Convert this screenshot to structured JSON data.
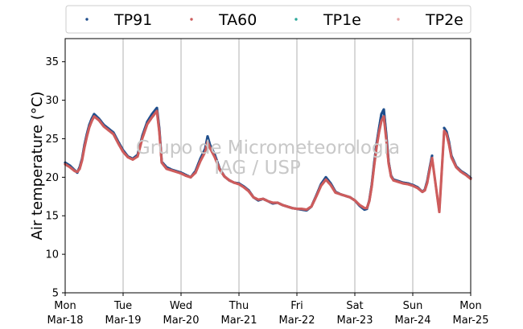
{
  "chart_data": {
    "type": "scatter",
    "ylabel": "Air temperature (°C)",
    "xlabel": "",
    "ylim": [
      5,
      38
    ],
    "xlim": [
      "2024-03-18T00:00",
      "2024-03-25T00:00"
    ],
    "grid": "vertical, daily",
    "legend": "top, horizontal",
    "watermark": [
      "Grupo de Micrometeorologia",
      "IAG / USP"
    ],
    "yticks": [
      5,
      10,
      15,
      20,
      25,
      30,
      35
    ],
    "xticks": [
      {
        "day": "Mon",
        "date": "Mar-18"
      },
      {
        "day": "Tue",
        "date": "Mar-19"
      },
      {
        "day": "Wed",
        "date": "Mar-20"
      },
      {
        "day": "Thu",
        "date": "Mar-21"
      },
      {
        "day": "Fri",
        "date": "Mar-22"
      },
      {
        "day": "Sat",
        "date": "Mar-23"
      },
      {
        "day": "Sun",
        "date": "Mar-24"
      },
      {
        "day": "Mon",
        "date": "Mar-25"
      }
    ],
    "series": [
      {
        "name": "TP91",
        "color": "#1f4e8c",
        "points": [
          [
            "2024-03-18T00:00",
            21.9
          ],
          [
            "2024-03-18T02:00",
            21.5
          ],
          [
            "2024-03-18T04:00",
            20.9
          ],
          [
            "2024-03-18T05:00",
            20.6
          ],
          [
            "2024-03-18T06:00",
            21.3
          ],
          [
            "2024-03-18T07:00",
            22.4
          ],
          [
            "2024-03-18T08:00",
            24.2
          ],
          [
            "2024-03-18T09:00",
            25.6
          ],
          [
            "2024-03-18T10:00",
            26.8
          ],
          [
            "2024-03-18T11:00",
            27.6
          ],
          [
            "2024-03-18T12:00",
            28.2
          ],
          [
            "2024-03-18T14:00",
            27.6
          ],
          [
            "2024-03-18T16:00",
            26.8
          ],
          [
            "2024-03-18T18:00",
            26.3
          ],
          [
            "2024-03-18T20:00",
            25.8
          ],
          [
            "2024-03-18T22:00",
            24.6
          ],
          [
            "2024-03-19T00:00",
            23.5
          ],
          [
            "2024-03-19T02:00",
            22.7
          ],
          [
            "2024-03-19T04:00",
            22.4
          ],
          [
            "2024-03-19T06:00",
            22.9
          ],
          [
            "2024-03-19T08:00",
            25.4
          ],
          [
            "2024-03-19T10:00",
            27.2
          ],
          [
            "2024-03-19T12:00",
            28.2
          ],
          [
            "2024-03-19T14:00",
            29.0
          ],
          [
            "2024-03-19T15:00",
            26.3
          ],
          [
            "2024-03-19T16:00",
            22.0
          ],
          [
            "2024-03-19T18:00",
            21.3
          ],
          [
            "2024-03-19T20:00",
            21.0
          ],
          [
            "2024-03-19T22:00",
            20.8
          ],
          [
            "2024-03-20T00:00",
            20.6
          ],
          [
            "2024-03-20T02:00",
            20.3
          ],
          [
            "2024-03-20T04:00",
            20.0
          ],
          [
            "2024-03-20T06:00",
            20.8
          ],
          [
            "2024-03-20T08:00",
            22.4
          ],
          [
            "2024-03-20T10:00",
            23.7
          ],
          [
            "2024-03-20T11:00",
            25.3
          ],
          [
            "2024-03-20T12:00",
            24.2
          ],
          [
            "2024-03-20T14:00",
            22.9
          ],
          [
            "2024-03-20T16:00",
            21.1
          ],
          [
            "2024-03-20T18:00",
            20.1
          ],
          [
            "2024-03-20T20:00",
            19.6
          ],
          [
            "2024-03-20T22:00",
            19.3
          ],
          [
            "2024-03-21T00:00",
            19.2
          ],
          [
            "2024-03-21T02:00",
            18.8
          ],
          [
            "2024-03-21T04:00",
            18.3
          ],
          [
            "2024-03-21T06:00",
            17.4
          ],
          [
            "2024-03-21T08:00",
            17.0
          ],
          [
            "2024-03-21T10:00",
            17.2
          ],
          [
            "2024-03-21T12:00",
            16.9
          ],
          [
            "2024-03-21T14:00",
            16.6
          ],
          [
            "2024-03-21T16:00",
            16.7
          ],
          [
            "2024-03-21T18:00",
            16.4
          ],
          [
            "2024-03-21T20:00",
            16.2
          ],
          [
            "2024-03-21T22:00",
            16.0
          ],
          [
            "2024-03-22T00:00",
            15.9
          ],
          [
            "2024-03-22T02:00",
            15.8
          ],
          [
            "2024-03-22T04:00",
            15.7
          ],
          [
            "2024-03-22T06:00",
            16.2
          ],
          [
            "2024-03-22T08:00",
            17.6
          ],
          [
            "2024-03-22T10:00",
            19.1
          ],
          [
            "2024-03-22T12:00",
            20.0
          ],
          [
            "2024-03-22T14:00",
            19.2
          ],
          [
            "2024-03-22T16:00",
            18.1
          ],
          [
            "2024-03-22T18:00",
            17.8
          ],
          [
            "2024-03-22T20:00",
            17.6
          ],
          [
            "2024-03-22T22:00",
            17.4
          ],
          [
            "2024-03-23T00:00",
            17.0
          ],
          [
            "2024-03-23T02:00",
            16.3
          ],
          [
            "2024-03-23T04:00",
            15.8
          ],
          [
            "2024-03-23T05:00",
            15.9
          ],
          [
            "2024-03-23T06:00",
            17.0
          ],
          [
            "2024-03-23T07:00",
            19.0
          ],
          [
            "2024-03-23T08:00",
            21.8
          ],
          [
            "2024-03-23T09:00",
            24.3
          ],
          [
            "2024-03-23T10:00",
            26.3
          ],
          [
            "2024-03-23T11:00",
            28.2
          ],
          [
            "2024-03-23T12:00",
            28.8
          ],
          [
            "2024-03-23T13:00",
            25.6
          ],
          [
            "2024-03-23T14:00",
            22.0
          ],
          [
            "2024-03-23T15:00",
            20.2
          ],
          [
            "2024-03-23T16:00",
            19.7
          ],
          [
            "2024-03-23T18:00",
            19.5
          ],
          [
            "2024-03-23T20:00",
            19.3
          ],
          [
            "2024-03-23T22:00",
            19.2
          ],
          [
            "2024-03-24T00:00",
            19.0
          ],
          [
            "2024-03-24T02:00",
            18.7
          ],
          [
            "2024-03-24T04:00",
            18.1
          ],
          [
            "2024-03-24T05:00",
            18.4
          ],
          [
            "2024-03-24T06:00",
            19.5
          ],
          [
            "2024-03-24T07:00",
            21.2
          ],
          [
            "2024-03-24T08:00",
            22.8
          ],
          [
            "2024-03-24T13:00",
            26.4
          ],
          [
            "2024-03-24T14:00",
            25.9
          ],
          [
            "2024-03-24T15:00",
            24.6
          ],
          [
            "2024-03-24T16:00",
            22.8
          ],
          [
            "2024-03-24T18:00",
            21.4
          ],
          [
            "2024-03-24T20:00",
            20.8
          ],
          [
            "2024-03-24T22:00",
            20.4
          ],
          [
            "2024-03-25T00:00",
            19.9
          ]
        ]
      },
      {
        "name": "TA60",
        "color": "#cd5c5c",
        "points": [
          [
            "2024-03-18T00:00",
            21.7
          ],
          [
            "2024-03-18T02:00",
            21.3
          ],
          [
            "2024-03-18T04:00",
            20.8
          ],
          [
            "2024-03-18T05:00",
            20.7
          ],
          [
            "2024-03-18T06:00",
            21.1
          ],
          [
            "2024-03-18T07:00",
            22.2
          ],
          [
            "2024-03-18T08:00",
            23.9
          ],
          [
            "2024-03-18T09:00",
            25.3
          ],
          [
            "2024-03-18T10:00",
            26.5
          ],
          [
            "2024-03-18T11:00",
            27.3
          ],
          [
            "2024-03-18T12:00",
            27.9
          ],
          [
            "2024-03-18T14:00",
            27.4
          ],
          [
            "2024-03-18T16:00",
            26.6
          ],
          [
            "2024-03-18T18:00",
            26.1
          ],
          [
            "2024-03-18T20:00",
            25.6
          ],
          [
            "2024-03-18T22:00",
            24.4
          ],
          [
            "2024-03-19T00:00",
            23.3
          ],
          [
            "2024-03-19T02:00",
            22.6
          ],
          [
            "2024-03-19T04:00",
            22.3
          ],
          [
            "2024-03-19T06:00",
            22.7
          ],
          [
            "2024-03-19T08:00",
            25.1
          ],
          [
            "2024-03-19T10:00",
            26.9
          ],
          [
            "2024-03-19T12:00",
            27.8
          ],
          [
            "2024-03-19T14:00",
            28.6
          ],
          [
            "2024-03-19T15:00",
            25.9
          ],
          [
            "2024-03-19T16:00",
            21.9
          ],
          [
            "2024-03-19T18:00",
            21.1
          ],
          [
            "2024-03-19T20:00",
            20.9
          ],
          [
            "2024-03-19T22:00",
            20.7
          ],
          [
            "2024-03-20T00:00",
            20.5
          ],
          [
            "2024-03-20T02:00",
            20.2
          ],
          [
            "2024-03-20T04:00",
            20.0
          ],
          [
            "2024-03-20T06:00",
            20.6
          ],
          [
            "2024-03-20T08:00",
            22.1
          ],
          [
            "2024-03-20T10:00",
            23.3
          ],
          [
            "2024-03-20T11:00",
            24.6
          ],
          [
            "2024-03-20T12:00",
            23.8
          ],
          [
            "2024-03-20T14:00",
            22.6
          ],
          [
            "2024-03-20T16:00",
            21.0
          ],
          [
            "2024-03-20T18:00",
            20.1
          ],
          [
            "2024-03-20T20:00",
            19.6
          ],
          [
            "2024-03-20T22:00",
            19.3
          ],
          [
            "2024-03-21T00:00",
            19.1
          ],
          [
            "2024-03-21T02:00",
            18.7
          ],
          [
            "2024-03-21T04:00",
            18.2
          ],
          [
            "2024-03-21T06:00",
            17.4
          ],
          [
            "2024-03-21T08:00",
            17.1
          ],
          [
            "2024-03-21T10:00",
            17.2
          ],
          [
            "2024-03-21T12:00",
            16.9
          ],
          [
            "2024-03-21T14:00",
            16.7
          ],
          [
            "2024-03-21T16:00",
            16.7
          ],
          [
            "2024-03-21T18:00",
            16.4
          ],
          [
            "2024-03-21T20:00",
            16.2
          ],
          [
            "2024-03-21T22:00",
            16.0
          ],
          [
            "2024-03-22T00:00",
            15.9
          ],
          [
            "2024-03-22T02:00",
            15.9
          ],
          [
            "2024-03-22T04:00",
            15.8
          ],
          [
            "2024-03-22T06:00",
            16.2
          ],
          [
            "2024-03-22T08:00",
            17.5
          ],
          [
            "2024-03-22T10:00",
            18.9
          ],
          [
            "2024-03-22T12:00",
            19.7
          ],
          [
            "2024-03-22T14:00",
            19.0
          ],
          [
            "2024-03-22T16:00",
            18.0
          ],
          [
            "2024-03-22T18:00",
            17.8
          ],
          [
            "2024-03-22T20:00",
            17.6
          ],
          [
            "2024-03-22T22:00",
            17.4
          ],
          [
            "2024-03-23T00:00",
            17.0
          ],
          [
            "2024-03-23T02:00",
            16.4
          ],
          [
            "2024-03-23T04:00",
            16.0
          ],
          [
            "2024-03-23T05:00",
            16.0
          ],
          [
            "2024-03-23T06:00",
            16.9
          ],
          [
            "2024-03-23T07:00",
            18.8
          ],
          [
            "2024-03-23T08:00",
            21.5
          ],
          [
            "2024-03-23T09:00",
            23.9
          ],
          [
            "2024-03-23T10:00",
            25.8
          ],
          [
            "2024-03-23T11:00",
            27.3
          ],
          [
            "2024-03-23T12:00",
            27.9
          ],
          [
            "2024-03-23T13:00",
            25.0
          ],
          [
            "2024-03-23T14:00",
            21.8
          ],
          [
            "2024-03-23T15:00",
            20.1
          ],
          [
            "2024-03-23T16:00",
            19.6
          ],
          [
            "2024-03-23T18:00",
            19.4
          ],
          [
            "2024-03-23T20:00",
            19.2
          ],
          [
            "2024-03-23T22:00",
            19.1
          ],
          [
            "2024-03-24T00:00",
            18.9
          ],
          [
            "2024-03-24T02:00",
            18.6
          ],
          [
            "2024-03-24T04:00",
            18.1
          ],
          [
            "2024-03-24T05:00",
            18.3
          ],
          [
            "2024-03-24T06:00",
            19.3
          ],
          [
            "2024-03-24T07:00",
            21.0
          ],
          [
            "2024-03-24T08:00",
            22.5
          ],
          [
            "2024-03-24T11:00",
            15.5
          ],
          [
            "2024-03-24T13:00",
            26.0
          ],
          [
            "2024-03-24T14:00",
            25.6
          ],
          [
            "2024-03-24T15:00",
            24.3
          ],
          [
            "2024-03-24T16:00",
            22.6
          ],
          [
            "2024-03-24T18:00",
            21.3
          ],
          [
            "2024-03-24T20:00",
            20.7
          ],
          [
            "2024-03-24T22:00",
            20.3
          ],
          [
            "2024-03-25T00:00",
            19.8
          ]
        ]
      },
      {
        "name": "TP1e",
        "color": "#2ca89a",
        "points": []
      },
      {
        "name": "TP2e",
        "color": "#e8a5a5",
        "points": []
      }
    ]
  }
}
